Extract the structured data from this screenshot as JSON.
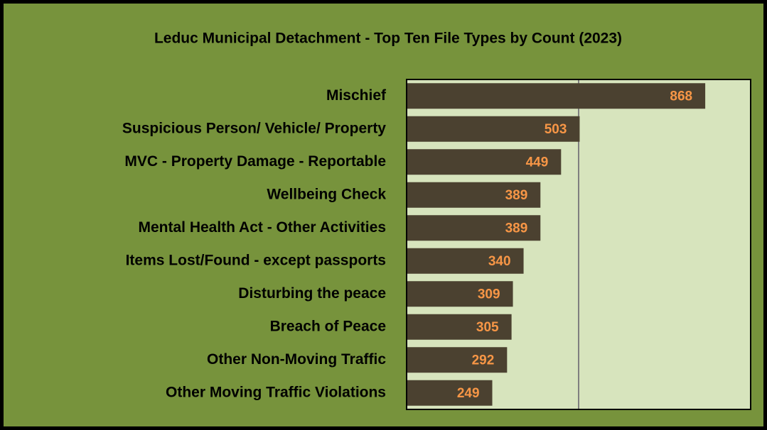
{
  "chart_data": {
    "type": "bar",
    "orientation": "horizontal",
    "title": "Leduc Municipal Detachment - Top Ten File Types by Count (2023)",
    "categories": [
      "Mischief",
      "Suspicious Person/ Vehicle/ Property",
      "MVC - Property Damage - Reportable",
      "Wellbeing Check",
      "Mental Health Act - Other Activities",
      "Items Lost/Found - except passports",
      "Disturbing the peace",
      "Breach of Peace",
      "Other Non-Moving Traffic",
      "Other Moving Traffic Violations"
    ],
    "values": [
      868,
      503,
      449,
      389,
      389,
      340,
      309,
      305,
      292,
      249
    ],
    "color": "#4b4130",
    "label_color": "#f79646",
    "xlim": [
      0,
      1000
    ],
    "xticks": [
      0,
      500,
      1000
    ],
    "grid": true
  }
}
